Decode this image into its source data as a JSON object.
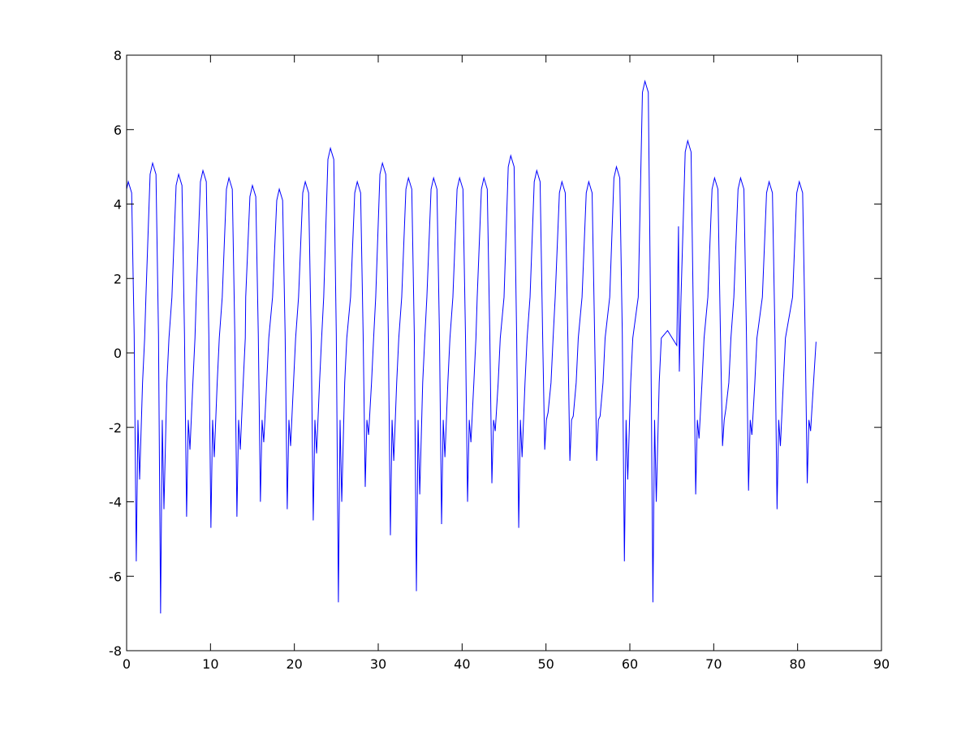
{
  "chart_data": {
    "type": "line",
    "color": "#0000ff",
    "grid": false,
    "xlim": [
      0,
      90
    ],
    "xticks": [
      0,
      10,
      20,
      30,
      40,
      50,
      60,
      70,
      80,
      90
    ],
    "ylim": [
      -8,
      8
    ],
    "yticks": [
      -8,
      -6,
      -4,
      -2,
      0,
      2,
      4,
      6,
      8
    ],
    "x": [
      0,
      0.2,
      0.6,
      0.9,
      1.15,
      1.35,
      1.55,
      1.9,
      2.15,
      2.3,
      2.8,
      3.1,
      3.5,
      3.8,
      4.05,
      4.25,
      4.45,
      4.8,
      5.05,
      5.4,
      5.9,
      6.2,
      6.6,
      6.9,
      7.15,
      7.35,
      7.55,
      7.9,
      8.15,
      8.3,
      8.8,
      9.1,
      9.5,
      9.8,
      10.05,
      10.25,
      10.45,
      10.8,
      11.05,
      11.4,
      11.9,
      12.2,
      12.6,
      12.9,
      13.15,
      13.35,
      13.55,
      13.9,
      14.15,
      14.2,
      14.7,
      15.0,
      15.4,
      15.7,
      15.95,
      16.15,
      16.35,
      16.7,
      16.95,
      17.4,
      17.9,
      18.2,
      18.6,
      18.9,
      19.15,
      19.35,
      19.55,
      19.9,
      20.15,
      20.5,
      21.0,
      21.3,
      21.7,
      22.0,
      22.25,
      22.45,
      22.65,
      23.0,
      23.25,
      23.5,
      24.0,
      24.3,
      24.7,
      25.0,
      25.25,
      25.45,
      25.65,
      26.0,
      26.25,
      26.7,
      27.2,
      27.5,
      27.9,
      28.2,
      28.45,
      28.65,
      28.85,
      29.2,
      29.45,
      29.7,
      30.2,
      30.5,
      30.9,
      31.2,
      31.45,
      31.65,
      31.85,
      32.2,
      32.45,
      32.8,
      33.3,
      33.6,
      34.0,
      34.3,
      34.55,
      34.75,
      34.95,
      35.3,
      35.55,
      35.8,
      36.3,
      36.6,
      37.0,
      37.3,
      37.55,
      37.75,
      37.95,
      38.3,
      38.55,
      38.9,
      39.4,
      39.7,
      40.1,
      40.4,
      40.65,
      40.85,
      41.05,
      41.4,
      41.65,
      41.8,
      42.3,
      42.6,
      43.0,
      43.3,
      43.55,
      43.75,
      43.95,
      44.3,
      44.55,
      45.0,
      45.5,
      45.8,
      46.2,
      46.5,
      46.75,
      46.95,
      47.15,
      47.5,
      47.75,
      48.1,
      48.6,
      48.9,
      49.3,
      49.6,
      49.85,
      50.05,
      50.25,
      50.6,
      50.85,
      51.1,
      51.6,
      51.9,
      52.3,
      52.6,
      52.85,
      53.05,
      53.25,
      53.6,
      53.85,
      54.3,
      54.8,
      55.1,
      55.5,
      55.8,
      56.05,
      56.25,
      56.45,
      56.8,
      57.05,
      57.6,
      58.1,
      58.4,
      58.8,
      59.1,
      59.35,
      59.55,
      59.75,
      60.1,
      60.35,
      61.0,
      61.5,
      61.8,
      62.2,
      62.5,
      62.75,
      62.95,
      63.15,
      63.5,
      63.75,
      64.5,
      65.6,
      65.8,
      65.9,
      66.1,
      66.6,
      66.9,
      67.3,
      67.6,
      67.85,
      68.05,
      68.25,
      68.6,
      68.85,
      69.3,
      69.8,
      70.1,
      70.5,
      70.8,
      71.05,
      71.25,
      71.45,
      71.8,
      72.05,
      72.4,
      72.9,
      73.2,
      73.6,
      73.9,
      74.15,
      74.35,
      74.55,
      74.9,
      75.15,
      75.8,
      76.3,
      76.6,
      77.0,
      77.3,
      77.55,
      77.75,
      77.95,
      78.3,
      78.55,
      79.4,
      79.9,
      80.2,
      80.6,
      80.9,
      81.15,
      81.35,
      81.55,
      81.9,
      82.2
    ],
    "values": [
      4.4,
      4.6,
      4.3,
      0.5,
      -5.6,
      -1.8,
      -3.4,
      -0.8,
      0.4,
      1.5,
      4.8,
      5.1,
      4.8,
      0.5,
      -7.0,
      -1.8,
      -4.2,
      -0.8,
      0.4,
      1.5,
      4.5,
      4.8,
      4.5,
      0.5,
      -4.4,
      -1.8,
      -2.6,
      -0.8,
      0.4,
      1.5,
      4.6,
      4.9,
      4.6,
      0.5,
      -4.7,
      -1.8,
      -2.8,
      -0.8,
      0.4,
      1.5,
      4.4,
      4.7,
      4.4,
      0.5,
      -4.4,
      -1.8,
      -2.6,
      -0.8,
      0.4,
      1.5,
      4.2,
      4.5,
      4.2,
      0.5,
      -4.0,
      -1.8,
      -2.4,
      -0.8,
      0.4,
      1.5,
      4.1,
      4.4,
      4.1,
      0.5,
      -4.2,
      -1.8,
      -2.5,
      -0.8,
      0.4,
      1.5,
      4.3,
      4.6,
      4.3,
      0.5,
      -4.5,
      -1.8,
      -2.7,
      -0.8,
      0.4,
      1.5,
      5.2,
      5.5,
      5.2,
      0.5,
      -6.7,
      -1.8,
      -4.0,
      -0.8,
      0.4,
      1.5,
      4.3,
      4.6,
      4.3,
      0.5,
      -3.6,
      -1.8,
      -2.2,
      -0.8,
      0.4,
      1.5,
      4.8,
      5.1,
      4.8,
      0.5,
      -4.9,
      -1.8,
      -2.9,
      -0.8,
      0.4,
      1.5,
      4.4,
      4.7,
      4.4,
      0.5,
      -6.4,
      -1.8,
      -3.8,
      -0.8,
      0.4,
      1.5,
      4.4,
      4.7,
      4.4,
      0.5,
      -4.6,
      -1.8,
      -2.8,
      -0.8,
      0.4,
      1.5,
      4.4,
      4.7,
      4.4,
      0.5,
      -4.0,
      -1.8,
      -2.4,
      -0.8,
      0.4,
      1.5,
      4.4,
      4.7,
      4.4,
      0.5,
      -3.5,
      -1.8,
      -2.1,
      -0.8,
      0.4,
      1.5,
      5.0,
      5.3,
      5.0,
      0.5,
      -4.7,
      -1.8,
      -2.8,
      -0.8,
      0.4,
      1.5,
      4.6,
      4.9,
      4.6,
      0.5,
      -2.6,
      -1.8,
      -1.6,
      -0.8,
      0.4,
      1.5,
      4.3,
      4.6,
      4.3,
      0.5,
      -2.9,
      -1.8,
      -1.7,
      -0.8,
      0.4,
      1.5,
      4.3,
      4.6,
      4.3,
      0.5,
      -2.9,
      -1.8,
      -1.7,
      -0.8,
      0.4,
      1.5,
      4.7,
      5.0,
      4.7,
      0.5,
      -5.6,
      -1.8,
      -3.4,
      -0.8,
      0.4,
      1.5,
      7.0,
      7.3,
      7.0,
      0.5,
      -6.7,
      -1.8,
      -4.0,
      -0.8,
      0.4,
      0.6,
      0.2,
      3.4,
      -0.5,
      1.5,
      5.4,
      5.7,
      5.4,
      0.5,
      -3.8,
      -1.8,
      -2.3,
      -0.8,
      0.4,
      1.5,
      4.4,
      4.7,
      4.4,
      0.5,
      -2.5,
      -1.8,
      -1.5,
      -0.8,
      0.4,
      1.5,
      4.4,
      4.7,
      4.4,
      0.5,
      -3.7,
      -1.8,
      -2.2,
      -0.8,
      0.4,
      1.5,
      4.3,
      4.6,
      4.3,
      0.5,
      -4.2,
      -1.8,
      -2.5,
      -0.8,
      0.4,
      1.5,
      4.3,
      4.6,
      4.3,
      0.5,
      -3.5,
      -1.8,
      -2.1,
      -0.8,
      0.3
    ]
  }
}
